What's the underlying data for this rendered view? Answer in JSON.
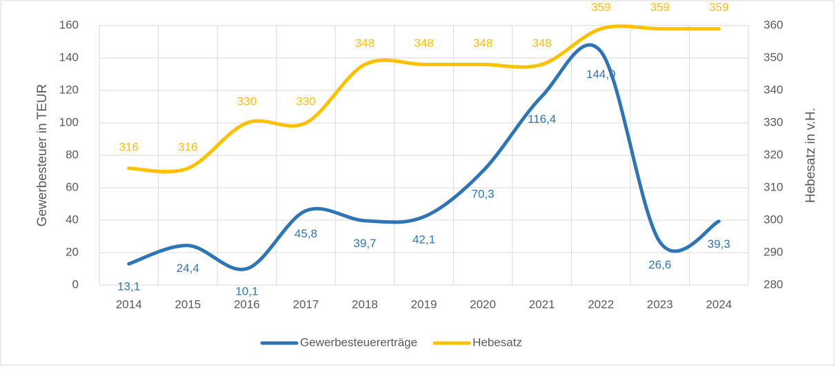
{
  "chart_data": {
    "type": "line",
    "categories": [
      "2014",
      "2015",
      "2016",
      "2017",
      "2018",
      "2019",
      "2020",
      "2021",
      "2022",
      "2023",
      "2024"
    ],
    "series": [
      {
        "name": "Gewerbesteuererträge",
        "color": "#2e75b6",
        "values": [
          13.1,
          24.4,
          10.1,
          45.8,
          39.7,
          42.1,
          70.3,
          116.4,
          144.0,
          26.6,
          39.3
        ],
        "value_labels": [
          "13,1",
          "24,4",
          "10,1",
          "45,8",
          "39,7",
          "42,1",
          "70,3",
          "116,4",
          "144,0",
          "26,6",
          "39,3"
        ]
      },
      {
        "name": "Hebesatz",
        "color": "#ffc000",
        "axis": "y2",
        "values": [
          316,
          316,
          330,
          330,
          348,
          348,
          348,
          348,
          359,
          359,
          359
        ]
      }
    ],
    "ylabel": "Gewerbesteuer in TEUR",
    "y2label": "Hebesatz in v.H.",
    "ylim": [
      0,
      160
    ],
    "yticks": [
      0,
      20,
      40,
      60,
      80,
      100,
      120,
      140,
      160
    ],
    "y2lim": [
      280,
      360
    ],
    "y2ticks": [
      280,
      290,
      300,
      310,
      320,
      330,
      340,
      350,
      360
    ],
    "grid": true,
    "smooth": true,
    "legend": "bottom"
  }
}
